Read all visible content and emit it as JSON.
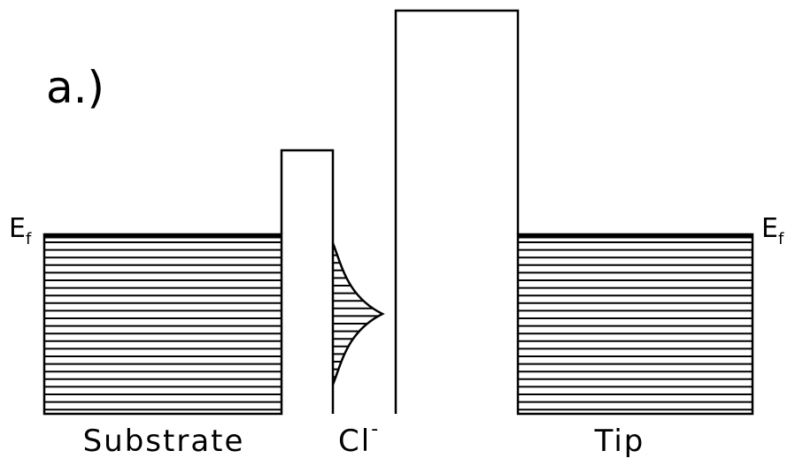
{
  "panel_label": "a.)",
  "fermi_levels": [
    {
      "symbol": "E",
      "subscript": "f"
    },
    {
      "symbol": "E",
      "subscript": "f"
    }
  ],
  "regions": {
    "substrate": "Substrate",
    "adsorbate": {
      "text": "Cl",
      "superscript": "-"
    },
    "tip": "Tip"
  }
}
